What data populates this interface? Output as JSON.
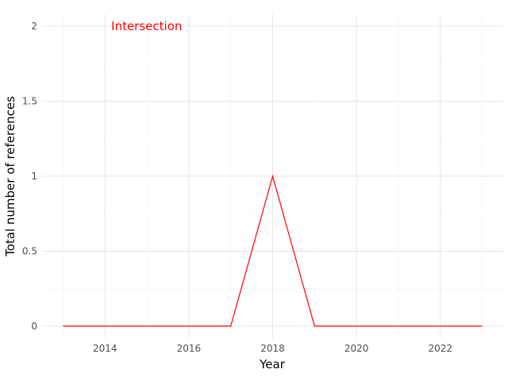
{
  "chart_data": {
    "type": "line",
    "xlabel": "Year",
    "ylabel": "Total number of references",
    "x": [
      2013,
      2014,
      2015,
      2016,
      2017,
      2018,
      2019,
      2020,
      2021,
      2022,
      2023
    ],
    "series": [
      {
        "values": [
          0,
          0,
          0,
          0,
          0,
          1,
          0,
          0,
          0,
          0,
          0
        ],
        "color": "#ff0000"
      }
    ],
    "xlim": [
      2012.5,
      2023.5
    ],
    "ylim": [
      -0.08,
      2.08
    ],
    "x_ticks": [
      2014,
      2016,
      2018,
      2020,
      2022
    ],
    "x_tick_labels": [
      "2014",
      "2016",
      "2018",
      "2020",
      "2022"
    ],
    "y_ticks": [
      0,
      0.5,
      1,
      1.5,
      2
    ],
    "y_tick_labels": [
      "0",
      "0.5",
      "1",
      "1.5",
      "2"
    ],
    "annotations": [
      {
        "text": "Intersection",
        "x": 2014.15,
        "y": 2,
        "color": "#ff0000"
      }
    ],
    "grid": true,
    "legend": "none"
  }
}
